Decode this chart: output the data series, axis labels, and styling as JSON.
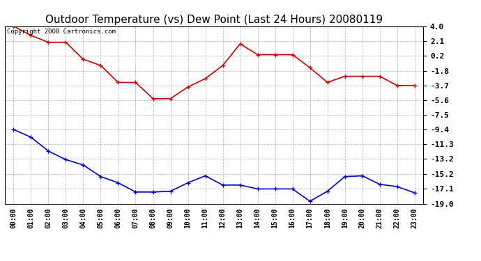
{
  "title": "Outdoor Temperature (vs) Dew Point (Last 24 Hours) 20080119",
  "copyright": "Copyright 2008 Cartronics.com",
  "x_labels": [
    "00:00",
    "01:00",
    "02:00",
    "03:00",
    "04:00",
    "05:00",
    "06:00",
    "07:00",
    "08:00",
    "09:00",
    "10:00",
    "11:00",
    "12:00",
    "13:00",
    "14:00",
    "15:00",
    "16:00",
    "17:00",
    "18:00",
    "19:00",
    "20:00",
    "21:00",
    "22:00",
    "23:00"
  ],
  "temp_data": [
    4.0,
    2.8,
    1.9,
    1.9,
    -0.3,
    -1.1,
    -3.3,
    -3.3,
    -5.4,
    -5.4,
    -3.9,
    -2.8,
    -1.1,
    1.7,
    0.3,
    0.3,
    0.3,
    -1.4,
    -3.3,
    -2.5,
    -2.5,
    -2.5,
    -3.7,
    -3.7
  ],
  "dew_data": [
    -9.4,
    -10.4,
    -12.2,
    -13.3,
    -14.0,
    -15.5,
    -16.3,
    -17.5,
    -17.5,
    -17.4,
    -16.3,
    -15.4,
    -16.6,
    -16.6,
    -17.1,
    -17.1,
    -17.1,
    -18.7,
    -17.4,
    -15.5,
    -15.4,
    -16.5,
    -16.8,
    -17.6
  ],
  "temp_color": "#cc0000",
  "dew_color": "#0000cc",
  "yticks": [
    4.0,
    2.1,
    0.2,
    -1.8,
    -3.7,
    -5.6,
    -7.5,
    -9.4,
    -11.3,
    -13.2,
    -15.2,
    -17.1,
    -19.0
  ],
  "ymin": -19.0,
  "ymax": 4.0,
  "bg_color": "#ffffff",
  "grid_color": "#bbbbbb",
  "title_fontsize": 11,
  "copyright_fontsize": 6.5,
  "tick_fontsize": 7,
  "ytick_fontsize": 8
}
